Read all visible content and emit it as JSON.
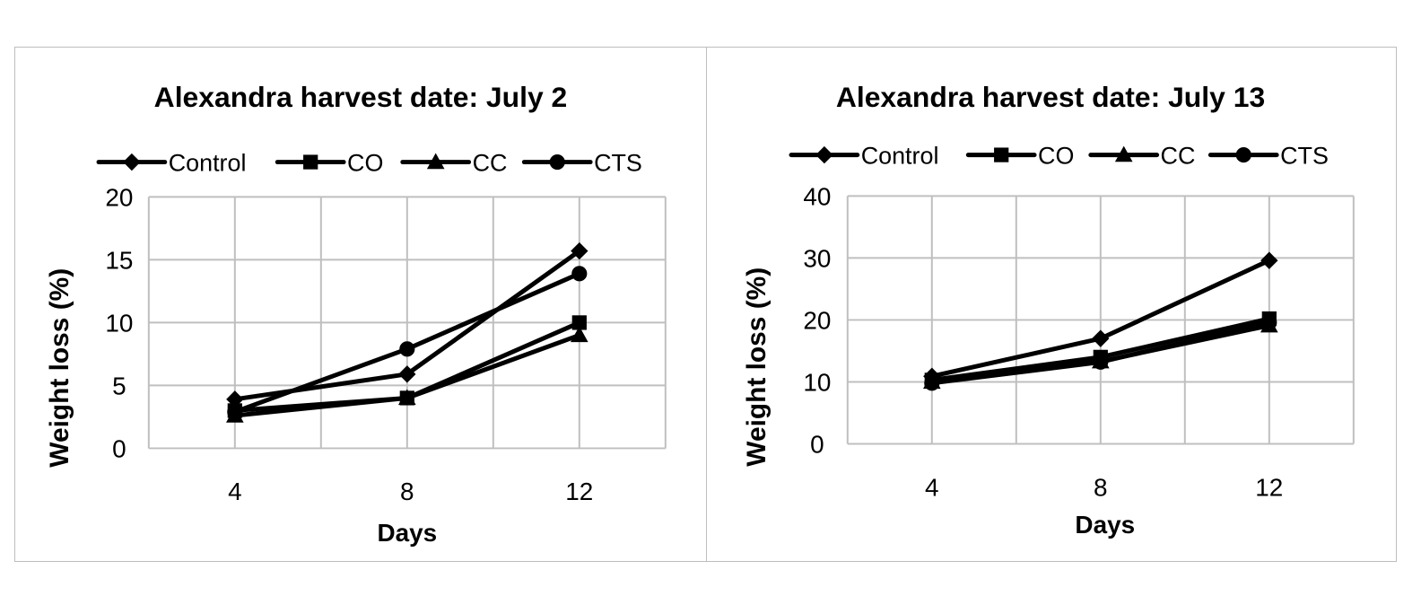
{
  "chart_data": [
    {
      "type": "line",
      "title": "Alexandra harvest date: July 2",
      "xlabel": "Days",
      "ylabel": "Weight loss (%)",
      "x": [
        4,
        8,
        12
      ],
      "x_ticks": [
        "4",
        "8",
        "12"
      ],
      "y_ticks": [
        "0",
        "5",
        "10",
        "15",
        "20"
      ],
      "xlim": [
        2,
        14
      ],
      "ylim": [
        0,
        20
      ],
      "grid": true,
      "legend_position": "top",
      "series": [
        {
          "name": "Control",
          "marker": "diamond",
          "values": [
            3.9,
            5.9,
            15.7
          ]
        },
        {
          "name": "CO",
          "marker": "square",
          "values": [
            3.0,
            4.0,
            10.0
          ]
        },
        {
          "name": "CC",
          "marker": "triangle",
          "values": [
            2.6,
            4.0,
            9.0
          ]
        },
        {
          "name": "CTS",
          "marker": "circle",
          "values": [
            2.9,
            7.9,
            13.9
          ]
        }
      ]
    },
    {
      "type": "line",
      "title": "Alexandra harvest date: July 13",
      "xlabel": "Days",
      "ylabel": "Weight loss (%)",
      "x": [
        4,
        8,
        12
      ],
      "x_ticks": [
        "4",
        "8",
        "12"
      ],
      "y_ticks": [
        "0",
        "10",
        "20",
        "30",
        "40"
      ],
      "xlim": [
        2,
        14
      ],
      "ylim": [
        0,
        40
      ],
      "grid": true,
      "legend_position": "top",
      "series": [
        {
          "name": "Control",
          "marker": "diamond",
          "values": [
            10.9,
            17.0,
            29.6
          ]
        },
        {
          "name": "CO",
          "marker": "square",
          "values": [
            10.3,
            14.0,
            20.2
          ]
        },
        {
          "name": "CC",
          "marker": "triangle",
          "values": [
            10.0,
            13.3,
            19.1
          ]
        },
        {
          "name": "CTS",
          "marker": "circle",
          "values": [
            9.8,
            13.2,
            19.6
          ]
        }
      ]
    }
  ]
}
